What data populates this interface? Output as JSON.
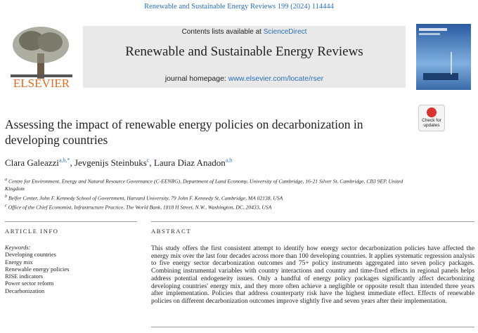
{
  "citation": "Renewable and Sustainable Energy Reviews 199 (2024) 114444",
  "header": {
    "contents_prefix": "Contents lists available at ",
    "contents_link": "ScienceDirect",
    "journal_title": "Renewable and Sustainable Energy Reviews",
    "homepage_prefix": "journal homepage: ",
    "homepage_link": "www.elsevier.com/locate/rser",
    "publisher": "ELSEVIER",
    "check_updates": [
      "Check for",
      "updates"
    ]
  },
  "title": "Assessing the impact of renewable energy policies on decarbonization in developing countries",
  "authors": [
    {
      "name": "Clara Galeazzi",
      "sup": "a,b,*"
    },
    {
      "name": "Jevgenijs Steinbuks",
      "sup": "c"
    },
    {
      "name": "Laura Diaz Anadon",
      "sup": "a,b"
    }
  ],
  "affiliations": [
    {
      "marker": "a",
      "text": "Centre for Environment, Energy and Natural Resource Governance (C-EENRG), Department of Land Economy, University of Cambridge, 16-21 Silver St, Cambridge, CB3 9EP, United Kingdom"
    },
    {
      "marker": "b",
      "text": "Belfer Center, John F. Kennedy School of Government, Harvard University, 79 John F. Kennedy St, Cambridge, MA 02138, USA"
    },
    {
      "marker": "c",
      "text": "Office of the Chief Economist, Infrastructure Practice, The World Bank, 1818 H Street, N.W., Washington, DC, 20433, USA"
    }
  ],
  "article_info": {
    "heading": "ARTICLE INFO",
    "keywords_label": "Keywords:",
    "keywords": [
      "Developing countries",
      "Energy mix",
      "Renewable energy policies",
      "RISE indicators",
      "Power sector reform",
      "Decarbonization"
    ]
  },
  "abstract": {
    "heading": "ABSTRACT",
    "text": "This study offers the first consistent attempt to identify how energy sector decarbonization policies have affected the energy mix over the last four decades across more than 100 developing countries. It applies systematic regression analysis to five energy sector decarbonization outcomes and 75+ policy instruments aggregated into seven policy packages. Combining instrumental variables with country interactions and country and time-fixed effects in regional panels helps address potential endogeneity issues. Only a handful of energy policy packages significantly affect decarbonizing developing countries' energy mix, and they more often achieve a negligible or opposite result than intended three years after implementation. Policies that address counterparty risk have the highest immediate effect. Effects of renewable policies on different decarbonization outcomes improve slightly five and seven years after their implementation."
  }
}
